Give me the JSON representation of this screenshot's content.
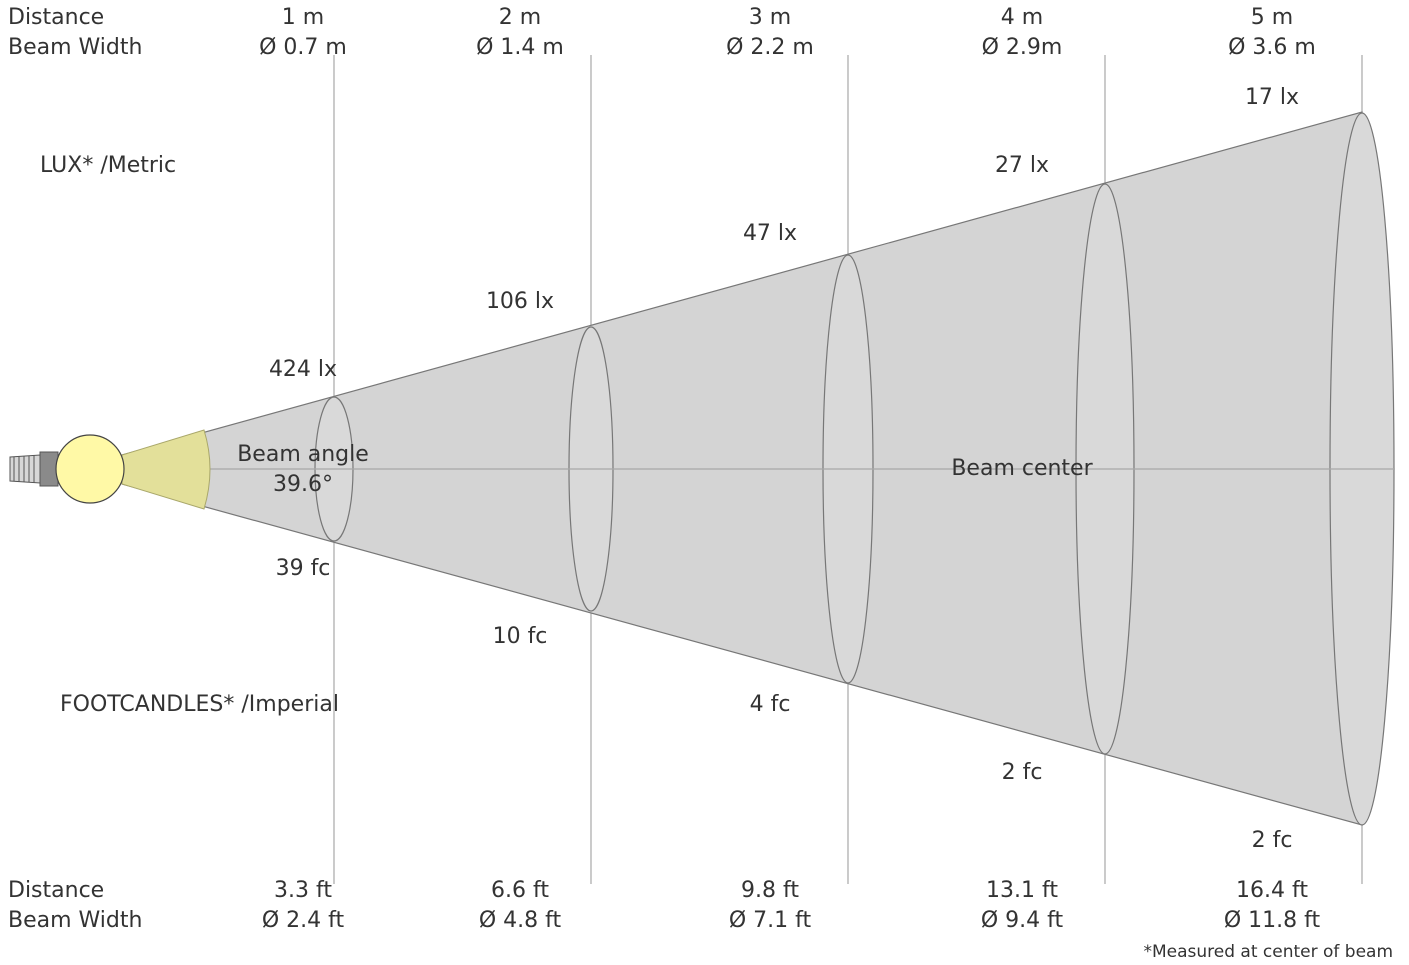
{
  "header": {
    "distance_label": "Distance",
    "beam_width_label": "Beam Width"
  },
  "metric": {
    "section_label": "LUX* /Metric",
    "distances": [
      "1 m",
      "2 m",
      "3 m",
      "4 m",
      "5 m"
    ],
    "beam_widths": [
      "Ø 0.7 m",
      "Ø 1.4 m",
      "Ø 2.2 m",
      "Ø 2.9m",
      "Ø 3.6 m"
    ],
    "lux": [
      "424 lx",
      "106 lx",
      "47 lx",
      "27 lx",
      "17 lx"
    ]
  },
  "imperial": {
    "section_label": "FOOTCANDLES* /Imperial",
    "distance_label": "Distance",
    "beam_width_label": "Beam Width",
    "distances": [
      "3.3 ft",
      "6.6 ft",
      "9.8 ft",
      "13.1 ft",
      "16.4 ft"
    ],
    "beam_widths": [
      "Ø 2.4 ft",
      "Ø 4.8 ft",
      "Ø 7.1 ft",
      "Ø 9.4 ft",
      "Ø 11.8 ft"
    ],
    "footcandles": [
      "39 fc",
      "10 fc",
      "4 fc",
      "2 fc",
      "2 fc"
    ]
  },
  "beam": {
    "angle_label": "Beam angle",
    "angle_value": "39.6°",
    "center_label": "Beam center"
  },
  "footnote": "*Measured at center of beam",
  "colors": {
    "cone_fill": "#d4d4d4",
    "cone_stroke": "#777777",
    "bulb_fill": "#fff9a6",
    "beam_angle_fill": "#e3e09a",
    "grid_line": "#a8a8a8"
  }
}
